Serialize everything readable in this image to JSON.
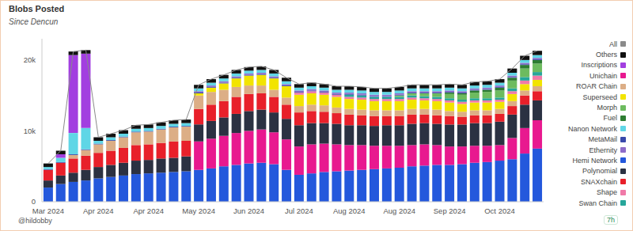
{
  "chart_data": {
    "type": "bar",
    "title": "Blobs Posted",
    "subtitle": "Since Dencun",
    "annotations": [
      "@hildobby",
      "7h"
    ],
    "stacked": true,
    "grid": false,
    "legend": "right",
    "categories": [
      "Mar 2024",
      null,
      null,
      null,
      "Apr 2024",
      null,
      null,
      null,
      "Apr 2024",
      null,
      null,
      null,
      "May 2024",
      null,
      null,
      null,
      "Jun 2024",
      null,
      null,
      null,
      "Jul 2024",
      null,
      null,
      null,
      "Aug 2024",
      null,
      null,
      null,
      "Aug 2024",
      null,
      null,
      null,
      "Sep 2024",
      null,
      null,
      null,
      "Oct 2024",
      null,
      null,
      null
    ],
    "ylim": [
      0,
      23000
    ],
    "yticks": [
      0,
      {
        "value": 10000,
        "label": "10k"
      },
      {
        "value": 20000,
        "label": "20k"
      }
    ],
    "series": [
      {
        "name": "All",
        "type": "line",
        "color": "#8a8a8a",
        "values": [
          5400,
          7200,
          21200,
          21400,
          9100,
          9600,
          10100,
          10800,
          10900,
          11200,
          11500,
          11600,
          16500,
          17300,
          17900,
          18600,
          19000,
          19100,
          18600,
          17500,
          16600,
          16800,
          16600,
          16300,
          16300,
          16200,
          16000,
          16000,
          16200,
          16500,
          16500,
          16500,
          16600,
          16500,
          16900,
          17000,
          17300,
          18800,
          20600,
          21300
        ]
      },
      {
        "name": "Others",
        "color": "#111111",
        "values": [
          500,
          500,
          500,
          500,
          500,
          500,
          500,
          500,
          500,
          500,
          500,
          500,
          500,
          500,
          500,
          500,
          500,
          500,
          500,
          500,
          500,
          500,
          500,
          500,
          500,
          500,
          500,
          500,
          500,
          500,
          500,
          500,
          500,
          500,
          500,
          500,
          500,
          600,
          600,
          600
        ]
      },
      {
        "name": "Inscriptions",
        "color": "#a23fe0",
        "values": [
          0,
          500,
          11000,
          10500,
          0,
          0,
          0,
          0,
          0,
          0,
          0,
          0,
          0,
          0,
          0,
          0,
          0,
          0,
          0,
          0,
          0,
          0,
          0,
          0,
          0,
          0,
          0,
          0,
          0,
          0,
          0,
          0,
          0,
          0,
          0,
          0,
          0,
          0,
          0,
          0
        ]
      },
      {
        "name": "Unichain",
        "color": "#e8198f",
        "values": [
          0,
          0,
          0,
          0,
          0,
          0,
          0,
          0,
          0,
          0,
          0,
          0,
          4000,
          4200,
          4300,
          4500,
          4600,
          4700,
          4500,
          4300,
          4000,
          4100,
          4000,
          3800,
          3600,
          3500,
          3300,
          3200,
          3100,
          3000,
          3000,
          2800,
          2600,
          2500,
          2400,
          2300,
          2200,
          3000,
          3600,
          4000
        ]
      },
      {
        "name": "ROAR Chain",
        "color": "#dcae86",
        "values": [
          0,
          0,
          500,
          800,
          1200,
          1400,
          1500,
          1800,
          1800,
          1900,
          2000,
          2000,
          1900,
          1800,
          1600,
          1400,
          1200,
          1100,
          1000,
          1000,
          900,
          900,
          900,
          800,
          800,
          800,
          800,
          800,
          800,
          800,
          800,
          800,
          700,
          700,
          700,
          700,
          700,
          700,
          700,
          700
        ]
      },
      {
        "name": "Superseed",
        "color": "#f2e400",
        "values": [
          0,
          0,
          0,
          0,
          0,
          0,
          0,
          0,
          0,
          0,
          0,
          0,
          300,
          600,
          900,
          1200,
          1400,
          1500,
          1600,
          1600,
          1600,
          1600,
          1500,
          1500,
          1400,
          1400,
          1300,
          1300,
          1300,
          1300,
          1200,
          1200,
          1200,
          1100,
          1100,
          1100,
          1000,
          1000,
          900,
          900
        ]
      },
      {
        "name": "Morph",
        "color": "#6dbb5f",
        "values": [
          0,
          0,
          0,
          0,
          0,
          0,
          0,
          0,
          0,
          0,
          0,
          0,
          0,
          0,
          0,
          0,
          0,
          0,
          0,
          0,
          0,
          0,
          0,
          0,
          0,
          0,
          0,
          0,
          200,
          300,
          400,
          500,
          600,
          700,
          800,
          900,
          1000,
          1100,
          1200,
          1200
        ]
      },
      {
        "name": "Fuel",
        "color": "#2e7d32",
        "values": [
          0,
          0,
          0,
          0,
          0,
          0,
          0,
          0,
          0,
          0,
          0,
          0,
          0,
          0,
          0,
          0,
          0,
          0,
          0,
          0,
          0,
          0,
          0,
          0,
          0,
          0,
          0,
          0,
          0,
          0,
          0,
          0,
          200,
          200,
          300,
          300,
          400,
          400,
          500,
          500
        ]
      },
      {
        "name": "Nanon Network",
        "color": "#5fd6e6",
        "values": [
          300,
          600,
          3000,
          3000,
          400,
          400,
          400,
          400,
          400,
          400,
          400,
          400,
          400,
          400,
          400,
          400,
          400,
          400,
          400,
          400,
          400,
          400,
          400,
          400,
          400,
          400,
          400,
          400,
          400,
          400,
          400,
          400,
          400,
          400,
          400,
          400,
          400,
          400,
          400,
          400
        ]
      },
      {
        "name": "MetaMail",
        "color": "#3949ab",
        "values": [
          100,
          100,
          100,
          100,
          100,
          100,
          100,
          100,
          100,
          100,
          100,
          100,
          100,
          100,
          100,
          100,
          100,
          100,
          100,
          100,
          100,
          100,
          100,
          100,
          100,
          100,
          100,
          100,
          100,
          100,
          100,
          100,
          100,
          100,
          100,
          100,
          100,
          100,
          100,
          100
        ]
      },
      {
        "name": "Ethernity",
        "color": "#8e6cc9",
        "values": [
          0,
          0,
          0,
          0,
          0,
          0,
          0,
          0,
          0,
          0,
          0,
          0,
          200,
          200,
          200,
          200,
          200,
          200,
          200,
          200,
          200,
          200,
          200,
          200,
          200,
          200,
          200,
          200,
          200,
          200,
          200,
          200,
          200,
          200,
          200,
          200,
          200,
          200,
          200,
          200
        ]
      },
      {
        "name": "Hemi Network",
        "color": "#2458dc",
        "values": [
          2000,
          2500,
          2800,
          3000,
          3300,
          3500,
          3700,
          3900,
          4000,
          4100,
          4200,
          4300,
          4500,
          4700,
          5000,
          5200,
          5400,
          5500,
          5300,
          4500,
          3800,
          4000,
          4200,
          4300,
          4400,
          4500,
          4600,
          4700,
          4800,
          5000,
          5100,
          5200,
          5200,
          5300,
          5500,
          5600,
          5800,
          6000,
          6800,
          7500
        ]
      },
      {
        "name": "Polynomial",
        "color": "#2b3142",
        "values": [
          1000,
          1200,
          1300,
          1500,
          1600,
          1700,
          1800,
          1900,
          1900,
          2000,
          2000,
          2100,
          2400,
          2500,
          2600,
          2700,
          2800,
          2800,
          2800,
          2900,
          3000,
          3000,
          2900,
          2900,
          2800,
          2800,
          2800,
          2900,
          2900,
          3000,
          3000,
          3000,
          3100,
          3100,
          3200,
          3200,
          3300,
          3300,
          3300,
          2800
        ]
      },
      {
        "name": "SNAXchain",
        "color": "#e8202a",
        "values": [
          1500,
          1800,
          2000,
          2000,
          2000,
          2000,
          2100,
          2200,
          2200,
          2200,
          2300,
          2200,
          2200,
          2300,
          2300,
          2400,
          2400,
          2300,
          2200,
          2000,
          1800,
          1700,
          1600,
          1500,
          1500,
          1400,
          1400,
          1300,
          1300,
          1300,
          1200,
          1200,
          1200,
          1100,
          1100,
          1100,
          1100,
          1200,
          1300,
          1300
        ]
      },
      {
        "name": "Shape",
        "color": "#f07aa8",
        "values": [
          0,
          0,
          0,
          0,
          0,
          0,
          0,
          0,
          0,
          0,
          0,
          0,
          0,
          0,
          0,
          0,
          0,
          0,
          0,
          0,
          300,
          300,
          300,
          300,
          300,
          300,
          300,
          300,
          300,
          300,
          300,
          300,
          300,
          300,
          300,
          300,
          300,
          400,
          500,
          600
        ]
      },
      {
        "name": "Swan Chain",
        "color": "#26a69a",
        "values": [
          0,
          0,
          0,
          0,
          0,
          0,
          0,
          0,
          0,
          0,
          0,
          0,
          0,
          0,
          0,
          0,
          0,
          0,
          0,
          0,
          0,
          0,
          0,
          0,
          300,
          300,
          300,
          300,
          300,
          300,
          300,
          300,
          300,
          300,
          300,
          300,
          300,
          400,
          500,
          500
        ]
      }
    ]
  }
}
